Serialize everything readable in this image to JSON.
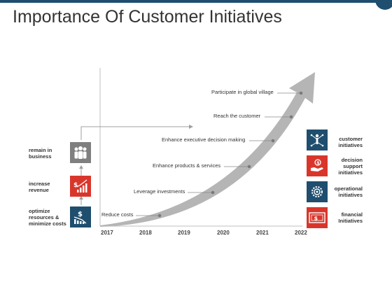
{
  "title": "Importance Of Customer Initiatives",
  "colors": {
    "dark": "#1f4e6e",
    "red": "#d9362b",
    "gray": "#7f7f7f",
    "arrow": "#b5b5b5"
  },
  "years": [
    "2017",
    "2018",
    "2019",
    "2020",
    "2021",
    "2022"
  ],
  "milestones": [
    "Reduce costs",
    "Leverage investments",
    "Enhance products & services",
    "Enhance executive decision making",
    "Reach the customer",
    "Participate in global village"
  ],
  "left_items": [
    {
      "label": "remain in business",
      "icon": "people-icon"
    },
    {
      "label": "increase revenue",
      "icon": "growth-chart-icon"
    },
    {
      "label": "optimize resources & minimize costs",
      "icon": "cost-decline-icon"
    }
  ],
  "right_items": [
    {
      "label": "customer initiatives",
      "icon": "network-person-icon"
    },
    {
      "label": "decision support initiatives",
      "icon": "hand-money-icon"
    },
    {
      "label": "operational initiatives",
      "icon": "gears-icon"
    },
    {
      "label": "financial Initiatives",
      "icon": "money-bill-icon"
    }
  ]
}
